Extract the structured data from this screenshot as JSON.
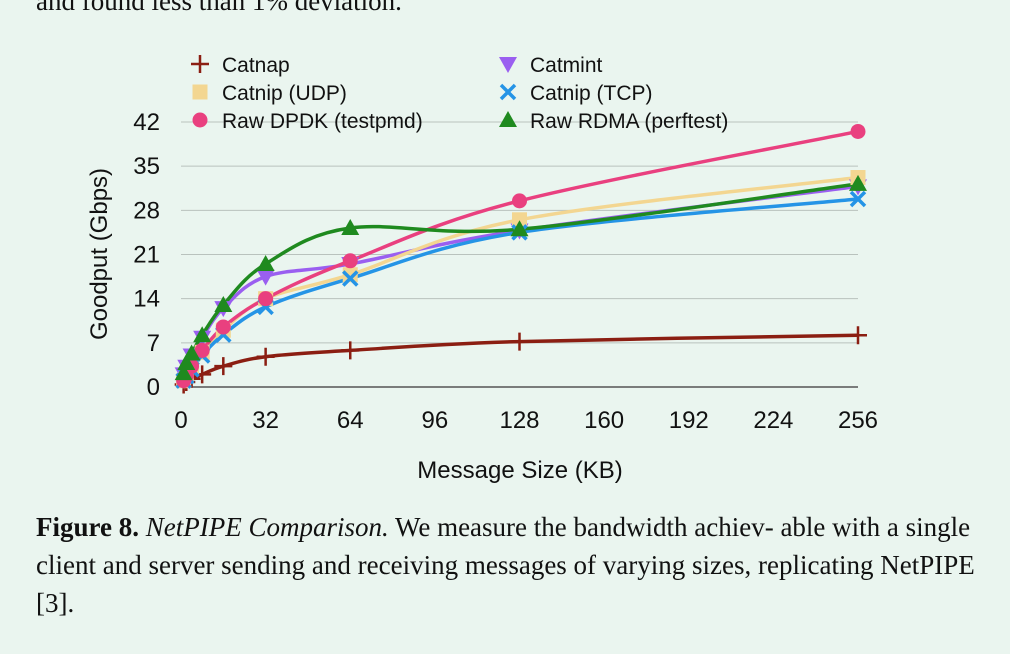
{
  "top_text": "and found less than 1% deviation.",
  "caption": {
    "figure_label": "Figure 8.",
    "title": "NetPIPE Comparison.",
    "text": "We measure the bandwidth achiev- able with a single client and server sending and receiving messages of varying sizes, replicating NetPIPE [3]."
  },
  "chart_data": {
    "type": "line",
    "xlabel": "Message Size (KB)",
    "ylabel": "Goodput (Gbps)",
    "xlim": [
      0,
      256
    ],
    "ylim": [
      0,
      42
    ],
    "xticks": [
      0,
      32,
      64,
      96,
      128,
      160,
      192,
      224,
      256
    ],
    "yticks": [
      0,
      7,
      14,
      21,
      28,
      35,
      42
    ],
    "grid": "horizontal",
    "legend_position": "top",
    "series": [
      {
        "name": "Catnap",
        "color": "#8b1e12",
        "marker": "plus",
        "x": [
          0,
          1,
          2,
          4,
          8,
          16,
          32,
          64,
          128,
          256
        ],
        "y": [
          0.2,
          0.4,
          0.8,
          1.3,
          2.0,
          3.3,
          4.8,
          5.8,
          7.2,
          8.2
        ]
      },
      {
        "name": "Catmint",
        "color": "#9a5ff0",
        "marker": "triangle-down",
        "x": [
          0,
          1,
          2,
          4,
          8,
          16,
          32,
          64,
          128,
          256
        ],
        "y": [
          1.0,
          2.0,
          3.2,
          5.0,
          7.8,
          12.5,
          17.5,
          19.5,
          24.8,
          31.8
        ]
      },
      {
        "name": "Catnip (UDP)",
        "color": "#f3d691",
        "marker": "square",
        "x": [
          0,
          1,
          2,
          4,
          8,
          16,
          32,
          64,
          128,
          256
        ],
        "y": [
          0.5,
          1.0,
          1.8,
          3.2,
          5.5,
          9.0,
          14.0,
          17.8,
          26.5,
          33.2
        ]
      },
      {
        "name": "Catnip (TCP)",
        "color": "#2594e6",
        "marker": "x",
        "x": [
          0,
          1,
          2,
          4,
          8,
          16,
          32,
          64,
          128,
          256
        ],
        "y": [
          0.5,
          1.0,
          1.7,
          2.8,
          5.0,
          8.3,
          12.7,
          17.2,
          24.5,
          29.8
        ]
      },
      {
        "name": "Raw DPDK (testpmd)",
        "color": "#e9407f",
        "marker": "circle",
        "x": [
          0,
          1,
          2,
          4,
          8,
          16,
          32,
          64,
          128,
          256
        ],
        "y": [
          0.5,
          1.0,
          1.8,
          3.3,
          5.8,
          9.5,
          14.0,
          20.0,
          29.5,
          40.5
        ]
      },
      {
        "name": "Raw RDMA (perftest)",
        "color": "#1f8a1f",
        "marker": "triangle-up",
        "x": [
          0,
          1,
          2,
          4,
          8,
          16,
          32,
          64,
          128,
          256
        ],
        "y": [
          1.2,
          2.2,
          3.8,
          5.3,
          8.2,
          13.0,
          19.5,
          25.2,
          25.0,
          32.2
        ]
      }
    ]
  }
}
